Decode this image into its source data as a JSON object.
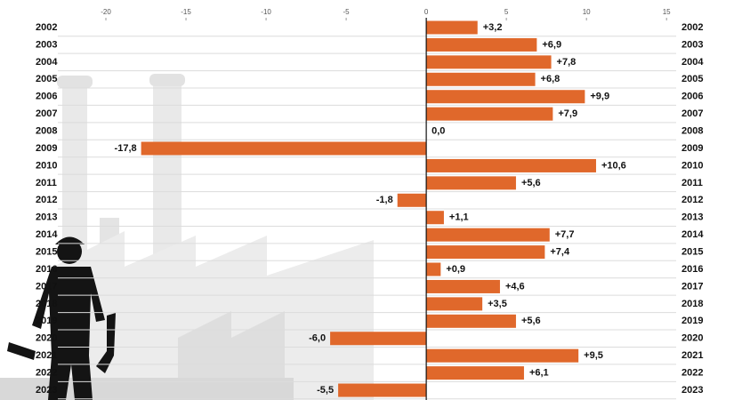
{
  "chart_data": {
    "type": "hbar",
    "categories": [
      "2002",
      "2003",
      "2004",
      "2005",
      "2006",
      "2007",
      "2008",
      "2009",
      "2010",
      "2011",
      "2012",
      "2013",
      "2014",
      "2015",
      "2016",
      "2017",
      "2018",
      "2019",
      "2020",
      "2021",
      "2022",
      "2023"
    ],
    "values": [
      3.2,
      6.9,
      7.8,
      6.8,
      9.9,
      7.9,
      0.0,
      -17.8,
      10.6,
      5.6,
      -1.8,
      1.1,
      7.7,
      7.4,
      0.9,
      4.6,
      3.5,
      5.6,
      -6.0,
      9.5,
      6.1,
      -5.5
    ],
    "value_labels": [
      "+3,2",
      "+6,9",
      "+7,8",
      "+6,8",
      "+9,9",
      "+7,9",
      "0,0",
      "-17,8",
      "+10,6",
      "+5,6",
      "-1,8",
      "+1,1",
      "+7,7",
      "+7,4",
      "+0,9",
      "+4,6",
      "+3,5",
      "+5,6",
      "-6,0",
      "+9,5",
      "+6,1",
      "-5,5"
    ],
    "color": "#e0682b",
    "xlim": [
      -23,
      15.6
    ],
    "xticks": [
      -20,
      -15,
      -10,
      -5,
      0,
      5,
      10,
      15
    ]
  }
}
